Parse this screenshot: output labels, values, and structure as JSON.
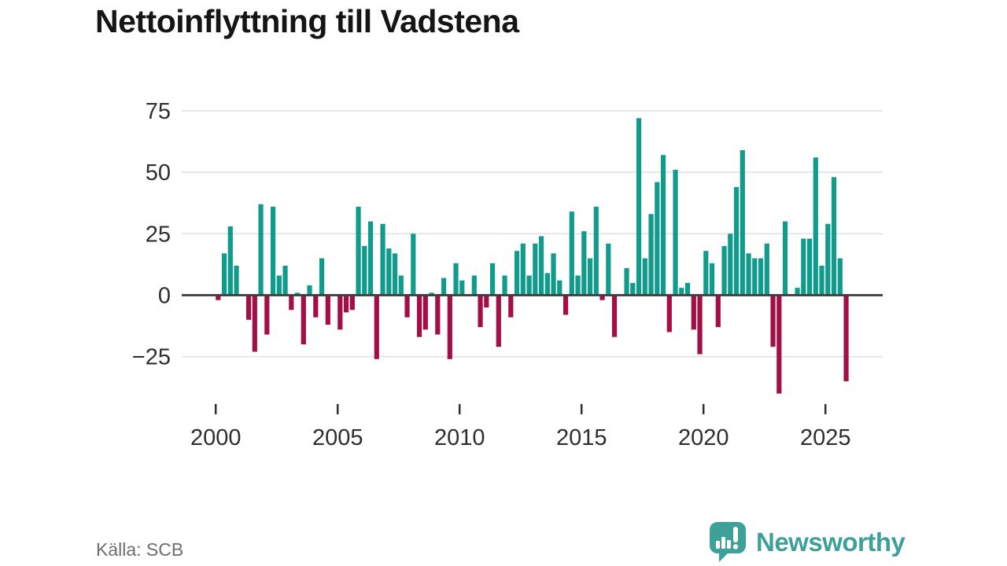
{
  "title": "Nettoinflyttning till Vadstena",
  "source": "Källa: SCB",
  "branding": {
    "logo_text": "Newsworthy",
    "logo_icon": "newsworthy-speech-bubble-bar-chart-icon"
  },
  "colors": {
    "positive": "#109b8d",
    "negative": "#a40e46",
    "axis": "#3d3d3d",
    "grid": "#e1e1e1",
    "tick_text": "#2e2e2e",
    "title_text": "#151515",
    "muted_text": "#6d6d72",
    "brand": "#3da099",
    "background": "#ffffff"
  },
  "chart_data": {
    "type": "bar",
    "title": "Nettoinflyttning till Vadstena",
    "frequency": "quarterly",
    "start": "2000-Q1",
    "end": "2025-Q4",
    "values": [
      -2,
      17,
      28,
      12,
      0,
      -10,
      -23,
      37,
      -16,
      36,
      8,
      12,
      -6,
      1,
      -20,
      4,
      -9,
      15,
      -12,
      0,
      -14,
      -7,
      -6,
      36,
      20,
      30,
      -26,
      29,
      19,
      17,
      8,
      -9,
      25,
      -17,
      -14,
      1,
      -16,
      7,
      -26,
      13,
      6,
      0,
      8,
      -13,
      -5,
      13,
      -21,
      8,
      -9,
      18,
      21,
      8,
      21,
      24,
      9,
      17,
      6,
      -8,
      34,
      8,
      26,
      15,
      36,
      -2,
      21,
      -17,
      0,
      11,
      5,
      72,
      15,
      33,
      46,
      57,
      -15,
      51,
      3,
      5,
      -14,
      -24,
      18,
      13,
      -13,
      20,
      25,
      44,
      59,
      17,
      15,
      15,
      21,
      -21,
      -40,
      30,
      0,
      3,
      23,
      23,
      56,
      12,
      29,
      48,
      15,
      -35
    ],
    "x_ticks": [
      2000,
      2005,
      2010,
      2015,
      2020,
      2025
    ],
    "y_ticks": [
      75,
      50,
      25,
      0,
      -25
    ],
    "ylim": [
      -41,
      83
    ],
    "xlabel": "",
    "ylabel": "",
    "grid": true,
    "legend": false
  }
}
